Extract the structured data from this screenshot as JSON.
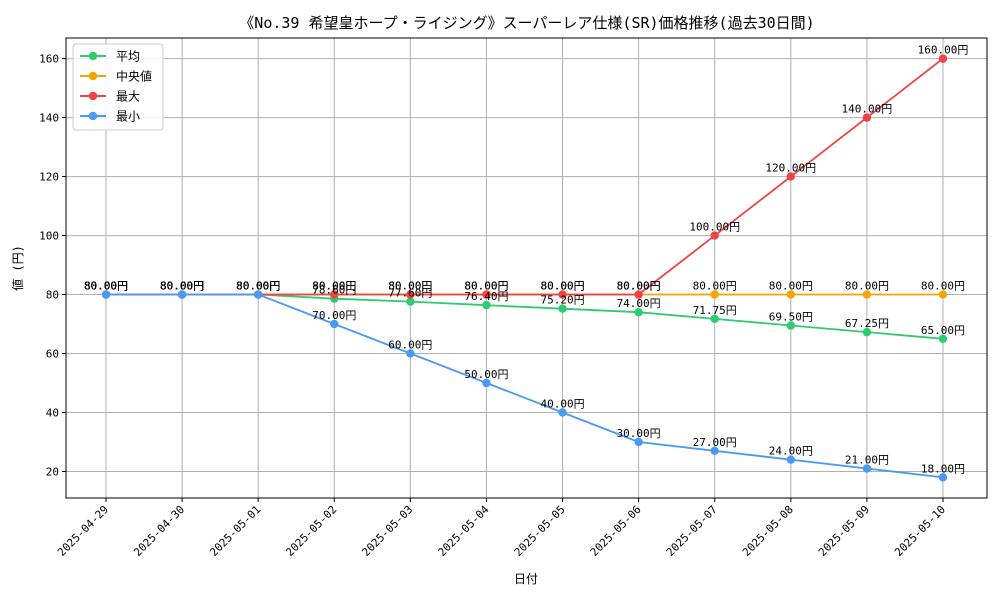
{
  "chart_data": {
    "type": "line",
    "title": "《No.39 希望皇ホープ・ライジング》スーパーレア仕様(SR)価格推移(過去30日間)",
    "xlabel": "日付",
    "ylabel": "値 (円)",
    "categories": [
      "2025-04-29",
      "2025-04-30",
      "2025-05-01",
      "2025-05-02",
      "2025-05-03",
      "2025-05-04",
      "2025-05-05",
      "2025-05-06",
      "2025-05-07",
      "2025-05-08",
      "2025-05-09",
      "2025-05-10"
    ],
    "ylim": [
      11,
      167
    ],
    "yticks": [
      20,
      40,
      60,
      80,
      100,
      120,
      140,
      160
    ],
    "grid": true,
    "legend_position": "top-left",
    "label_suffix": "円",
    "series": [
      {
        "name": "平均",
        "color": "#2ecc71",
        "values": [
          80,
          80,
          80,
          78.6,
          77.6,
          76.4,
          75.2,
          74,
          71.75,
          69.5,
          67.25,
          65
        ],
        "labels": [
          "80.00円",
          "80.00円",
          "80.00円",
          "78.60円",
          "77.60円",
          "76.40円",
          "75.20円",
          "74.00円",
          "71.75円",
          "69.50円",
          "67.25円",
          "65.00円"
        ]
      },
      {
        "name": "中央値",
        "color": "#f5a500",
        "values": [
          80,
          80,
          80,
          80,
          80,
          80,
          80,
          80,
          80,
          80,
          80,
          80
        ],
        "labels": [
          "80.00円",
          "80.00円",
          "80.00円",
          "80.00円",
          "80.00円",
          "80.00円",
          "80.00円",
          "80.00円",
          "80.00円",
          "80.00円",
          "80.00円",
          "80.00円"
        ]
      },
      {
        "name": "最大",
        "color": "#ef4444",
        "values": [
          80,
          80,
          80,
          80,
          80,
          80,
          80,
          80,
          100,
          120,
          140,
          160
        ],
        "labels": [
          "80.00円",
          "80.00円",
          "80.00円",
          "80.00円",
          "80.00円",
          "80.00円",
          "80.00円",
          "80.00円",
          "100.00円",
          "120.00円",
          "140.00円",
          "160.00円"
        ]
      },
      {
        "name": "最小",
        "color": "#4a9af5",
        "values": [
          80,
          80,
          80,
          70,
          60,
          50,
          40,
          30,
          27,
          24,
          21,
          18
        ],
        "labels": [
          "80.00円",
          "80.00円",
          "80.00円",
          "70.00円",
          "60.00円",
          "50.00円",
          "40.00円",
          "30.00円",
          "27.00円",
          "24.00円",
          "21.00円",
          "18.00円"
        ]
      }
    ]
  }
}
